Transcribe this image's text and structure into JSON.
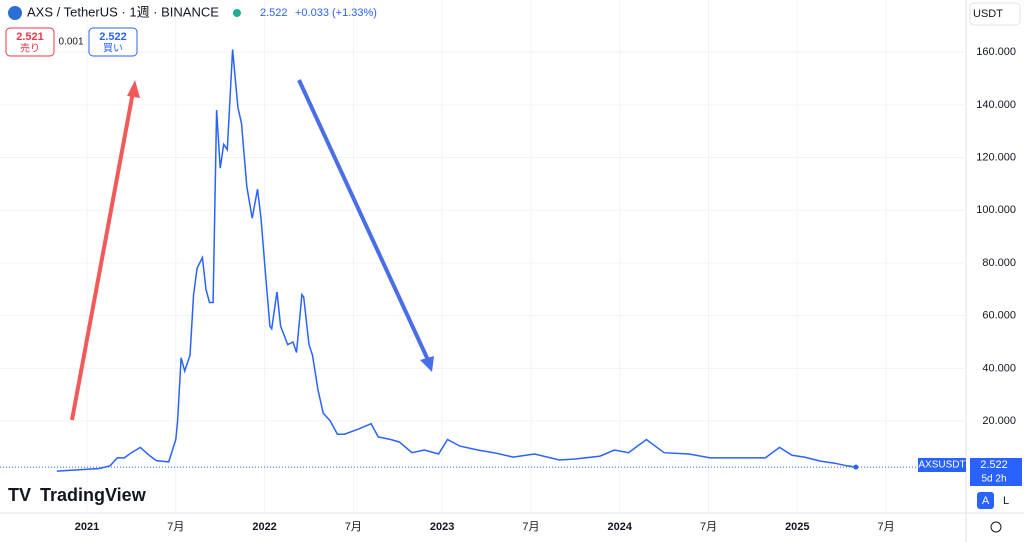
{
  "header": {
    "symbol": "AXS / TetherUS · 1週 · BINANCE",
    "price": "2.522",
    "change": "+0.033 (+1.33%)"
  },
  "trade": {
    "sell_price": "2.521",
    "sell": "売り",
    "spread": "0.001",
    "buy_price": "2.522",
    "buy": "買い"
  },
  "currency": "USDT",
  "price_label": {
    "symbol": "AXSUSDT",
    "price": "2.522",
    "countdown": "5d 2h"
  },
  "scale_buttons": [
    "A",
    "L"
  ],
  "logo": "TradingView",
  "chart_data": {
    "type": "line",
    "grid": true,
    "xlim": [
      2020.51,
      2025.95
    ],
    "ylim": [
      -14.9,
      179.8
    ],
    "xticks": [
      {
        "value": 2021,
        "label": "2021"
      },
      {
        "value": 2021.5,
        "label": "7月"
      },
      {
        "value": 2022,
        "label": "2022"
      },
      {
        "value": 2022.5,
        "label": "7月"
      },
      {
        "value": 2023,
        "label": "2023"
      },
      {
        "value": 2023.5,
        "label": "7月"
      },
      {
        "value": 2024,
        "label": "2024"
      },
      {
        "value": 2024.5,
        "label": "7月"
      },
      {
        "value": 2025,
        "label": "2025"
      },
      {
        "value": 2025.5,
        "label": "7月"
      }
    ],
    "yticks": [
      {
        "value": 20,
        "label": "20.000"
      },
      {
        "value": 40,
        "label": "40.000"
      },
      {
        "value": 60,
        "label": "60.000"
      },
      {
        "value": 80,
        "label": "80.000"
      },
      {
        "value": 100,
        "label": "100.000"
      },
      {
        "value": 120,
        "label": "120.000"
      },
      {
        "value": 140,
        "label": "140.000"
      },
      {
        "value": 160,
        "label": "160.000"
      }
    ],
    "x": [
      2020.83,
      2021.07,
      2021.13,
      2021.17,
      2021.21,
      2021.25,
      2021.3,
      2021.35,
      2021.39,
      2021.46,
      2021.5,
      2021.51,
      2021.53,
      2021.55,
      2021.58,
      2021.6,
      2021.62,
      2021.65,
      2021.67,
      2021.69,
      2021.71,
      2021.73,
      2021.75,
      2021.77,
      2021.79,
      2021.82,
      2021.85,
      2021.87,
      2021.9,
      2021.93,
      2021.96,
      2021.98,
      2022.0,
      2022.03,
      2022.04,
      2022.07,
      2022.09,
      2022.13,
      2022.16,
      2022.18,
      2022.21,
      2022.22,
      2022.25,
      2022.27,
      2022.3,
      2022.33,
      2022.37,
      2022.41,
      2022.45,
      2022.53,
      2022.6,
      2022.64,
      2022.71,
      2022.76,
      2022.83,
      2022.9,
      2022.98,
      2023.03,
      2023.1,
      2023.2,
      2023.29,
      2023.4,
      2023.52,
      2023.66,
      2023.75,
      2023.89,
      2023.97,
      2024.05,
      2024.15,
      2024.25,
      2024.39,
      2024.51,
      2024.68,
      2024.82,
      2024.9,
      2024.97,
      2025.04,
      2025.13,
      2025.21,
      2025.28,
      2025.33
    ],
    "series": [
      {
        "name": "AXSUSDT",
        "color": "#2962ff",
        "values": [
          1.0,
          2,
          3,
          6,
          6,
          8,
          10,
          7,
          5,
          4.5,
          13,
          20,
          44,
          39,
          45,
          68,
          78,
          82,
          70,
          65,
          65,
          138,
          116,
          125,
          123,
          161,
          139,
          133,
          109,
          97,
          108,
          97,
          80,
          56,
          55,
          69,
          56,
          49,
          50,
          46,
          68,
          67,
          49,
          45,
          32,
          23,
          20,
          15,
          15,
          17,
          19,
          14,
          13,
          12,
          8,
          9,
          7.5,
          13,
          10.5,
          9,
          8,
          6.3,
          7.5,
          5.2,
          5.6,
          6.7,
          9,
          8,
          13,
          8,
          7.5,
          6,
          6,
          6,
          10,
          7,
          6.3,
          4.8,
          4,
          3,
          2.522
        ]
      }
    ]
  }
}
